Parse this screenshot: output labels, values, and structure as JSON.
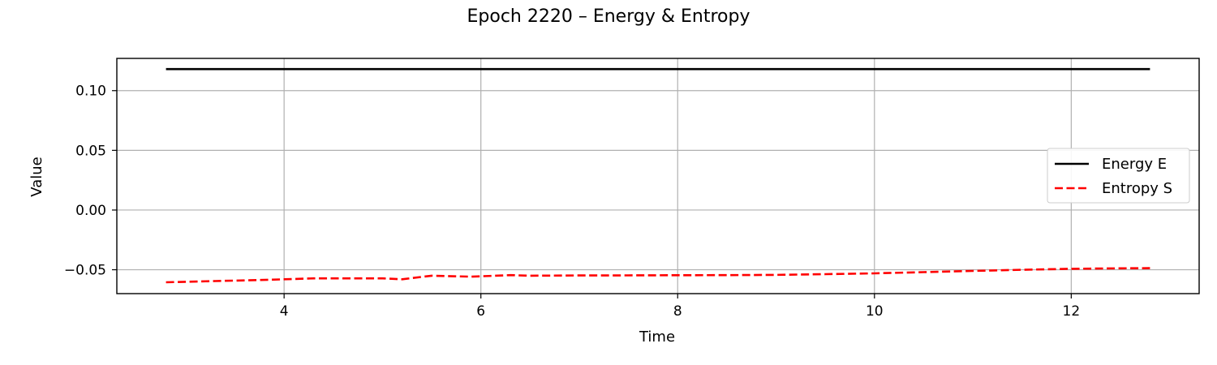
{
  "chart_data": {
    "type": "line",
    "title": "Epoch 2220 – Energy & Entropy",
    "xlabel": "Time",
    "ylabel": "Value",
    "xlim": [
      2.3,
      13.3
    ],
    "ylim": [
      -0.07,
      0.127
    ],
    "x_ticks": [
      4,
      6,
      8,
      10,
      12
    ],
    "y_ticks": [
      0.1,
      0.05,
      0.0,
      -0.05
    ],
    "x_tick_labels": [
      "4",
      "6",
      "8",
      "10",
      "12"
    ],
    "y_tick_labels": [
      "0.10",
      "0.05",
      "0.00",
      "−0.05"
    ],
    "grid": true,
    "legend_position": "center-right",
    "series": [
      {
        "name": "Energy E",
        "color": "#000000",
        "dash": "solid",
        "x": [
          2.8,
          12.8
        ],
        "y": [
          0.118,
          0.118
        ]
      },
      {
        "name": "Entropy S",
        "color": "#ff0000",
        "dash": "dashed",
        "x": [
          2.8,
          3.3,
          3.8,
          4.3,
          4.6,
          5.0,
          5.2,
          5.5,
          5.9,
          6.3,
          6.5,
          7.0,
          7.5,
          8.0,
          8.5,
          9.0,
          9.5,
          10.0,
          10.5,
          11.0,
          11.5,
          12.0,
          12.5,
          12.8
        ],
        "y": [
          -0.0605,
          -0.0595,
          -0.0585,
          -0.0572,
          -0.0572,
          -0.0572,
          -0.058,
          -0.055,
          -0.0558,
          -0.0545,
          -0.055,
          -0.0548,
          -0.0547,
          -0.0546,
          -0.0545,
          -0.0543,
          -0.0537,
          -0.053,
          -0.052,
          -0.051,
          -0.05,
          -0.0492,
          -0.0488,
          -0.0487
        ]
      }
    ]
  }
}
